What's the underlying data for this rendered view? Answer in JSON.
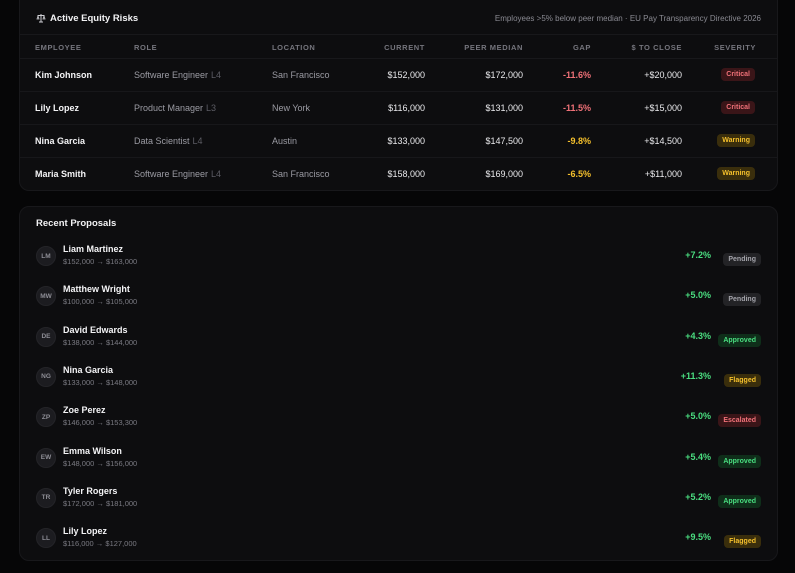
{
  "risks": {
    "title": "Active Equity Risks",
    "subtitle": "Employees >5% below peer median · EU Pay Transparency Directive 2026",
    "columns": {
      "employee": "EMPLOYEE",
      "role": "ROLE",
      "location": "LOCATION",
      "current": "CURRENT",
      "peer_median": "PEER MEDIAN",
      "gap": "GAP",
      "to_close": "$ TO CLOSE",
      "severity": "SEVERITY"
    },
    "rows": [
      {
        "employee": "Kim Johnson",
        "role": "Software Engineer",
        "level": "L4",
        "location": "San Francisco",
        "current": "$152,000",
        "peer_median": "$172,000",
        "gap": "-11.6%",
        "to_close": "+$20,000",
        "severity": "Critical"
      },
      {
        "employee": "Lily Lopez",
        "role": "Product Manager",
        "level": "L3",
        "location": "New York",
        "current": "$116,000",
        "peer_median": "$131,000",
        "gap": "-11.5%",
        "to_close": "+$15,000",
        "severity": "Critical"
      },
      {
        "employee": "Nina Garcia",
        "role": "Data Scientist",
        "level": "L4",
        "location": "Austin",
        "current": "$133,000",
        "peer_median": "$147,500",
        "gap": "-9.8%",
        "to_close": "+$14,500",
        "severity": "Warning"
      },
      {
        "employee": "Maria Smith",
        "role": "Software Engineer",
        "level": "L4",
        "location": "San Francisco",
        "current": "$158,000",
        "peer_median": "$169,000",
        "gap": "-6.5%",
        "to_close": "+$11,000",
        "severity": "Warning"
      }
    ]
  },
  "proposals": {
    "title": "Recent Proposals",
    "items": [
      {
        "initials": "LM",
        "name": "Liam Martinez",
        "range": "$152,000 → $163,000",
        "change": "+7.2%",
        "status": "Pending"
      },
      {
        "initials": "MW",
        "name": "Matthew Wright",
        "range": "$100,000 → $105,000",
        "change": "+5.0%",
        "status": "Pending"
      },
      {
        "initials": "DE",
        "name": "David Edwards",
        "range": "$138,000 → $144,000",
        "change": "+4.3%",
        "status": "Approved"
      },
      {
        "initials": "NG",
        "name": "Nina Garcia",
        "range": "$133,000 → $148,000",
        "change": "+11.3%",
        "status": "Flagged"
      },
      {
        "initials": "ZP",
        "name": "Zoe Perez",
        "range": "$146,000 → $153,300",
        "change": "+5.0%",
        "status": "Escalated"
      },
      {
        "initials": "EW",
        "name": "Emma Wilson",
        "range": "$148,000 → $156,000",
        "change": "+5.4%",
        "status": "Approved"
      },
      {
        "initials": "TR",
        "name": "Tyler Rogers",
        "range": "$172,000 → $181,000",
        "change": "+5.2%",
        "status": "Approved"
      },
      {
        "initials": "LL",
        "name": "Lily Lopez",
        "range": "$116,000 → $127,000",
        "change": "+9.5%",
        "status": "Flagged"
      }
    ]
  },
  "colors": {
    "critical": "#f07178",
    "warning": "#f5c02c",
    "positive": "#4ade80",
    "background": "#060607",
    "card": "#0d0d0f"
  }
}
